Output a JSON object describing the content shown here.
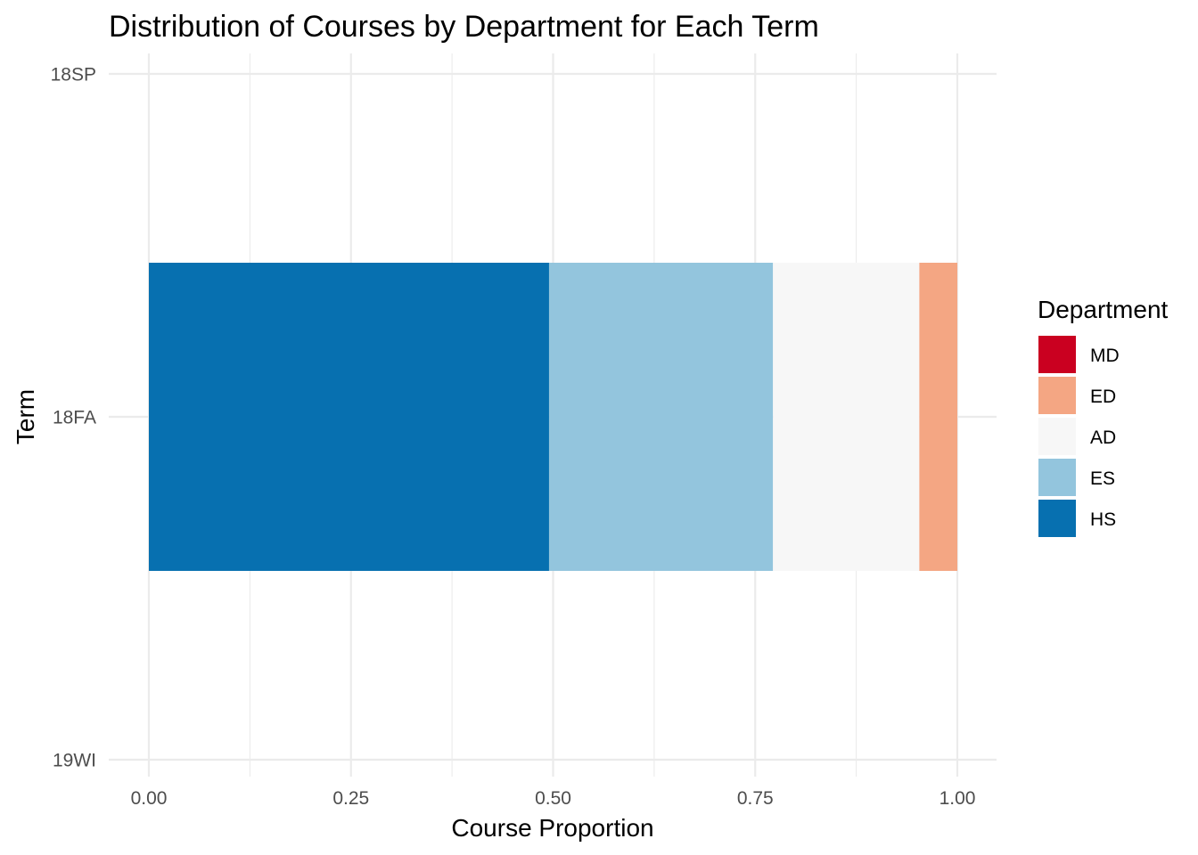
{
  "chart_data": {
    "type": "bar",
    "orientation": "horizontal",
    "stacked": true,
    "title": "Distribution of Courses by Department for Each Term",
    "xlabel": "Course Proportion",
    "ylabel": "Term",
    "xlim": [
      0,
      1
    ],
    "x_ticks": [
      "0.00",
      "0.25",
      "0.50",
      "0.75",
      "1.00"
    ],
    "x_tick_values": [
      0,
      0.25,
      0.5,
      0.75,
      1.0
    ],
    "categories": [
      "18SP",
      "18FA",
      "19WI"
    ],
    "grid": true,
    "legend": {
      "title": "Department",
      "placement": "right",
      "entries": [
        "MD",
        "ED",
        "AD",
        "ES",
        "HS"
      ]
    },
    "series": [
      {
        "name": "HS",
        "color": "#0770b0",
        "values": [
          0,
          0.495,
          0
        ]
      },
      {
        "name": "ES",
        "color": "#93c5dd",
        "values": [
          0,
          0.277,
          0
        ]
      },
      {
        "name": "AD",
        "color": "#f7f7f7",
        "values": [
          0,
          0.181,
          0
        ]
      },
      {
        "name": "ED",
        "color": "#f4a683",
        "values": [
          0,
          0.047,
          0
        ]
      },
      {
        "name": "MD",
        "color": "#ca0020",
        "values": [
          0,
          0,
          0
        ]
      }
    ]
  }
}
